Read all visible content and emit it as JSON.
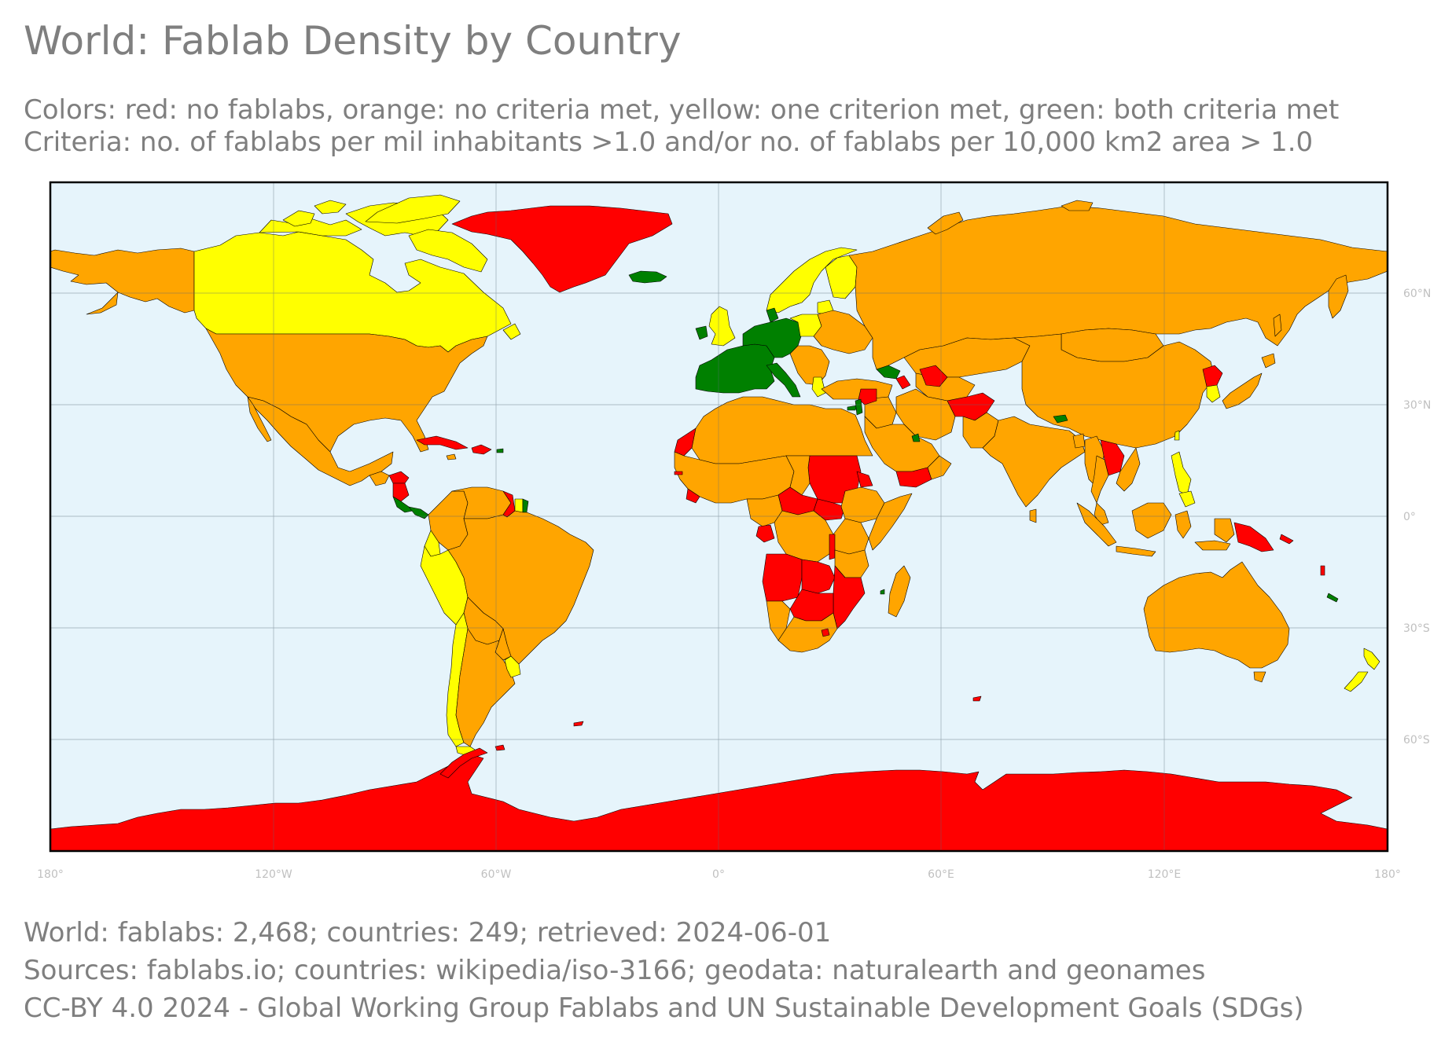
{
  "title": "World: Fablab Density by Country",
  "subtitle": {
    "line1": "Colors: red: no fablabs, orange: no criteria met, yellow: one criterion met, green: both criteria met",
    "line2": "Criteria: no. of fablabs per mil inhabitants >1.0 and/or no. of fablabs per 10,000 km2 area > 1.0"
  },
  "footer": {
    "line1": "World: fablabs: 2,468; countries: 249; retrieved: 2024-06-01",
    "line2": "Sources: fablabs.io; countries: wikipedia/iso-3166; geodata: naturalearth and geonames",
    "line3": "CC-BY 4.0 2024 - Global Working Group Fablabs and UN Sustainable Development Goals (SDGs)"
  },
  "colors": {
    "ocean": "#e6f4fb",
    "no_fablabs": "#ff0000",
    "no_criteria": "#ffa500",
    "one_criterion": "#ffff00",
    "both_criteria": "#008000",
    "border": "#000000",
    "grid": "#5a6a78"
  },
  "axes": {
    "x_ticks": [
      "180°",
      "120°W",
      "60°W",
      "0°",
      "60°E",
      "120°E",
      "180°"
    ],
    "y_ticks": [
      "60°N",
      "30°N",
      "0°",
      "30°S",
      "60°S"
    ]
  }
}
